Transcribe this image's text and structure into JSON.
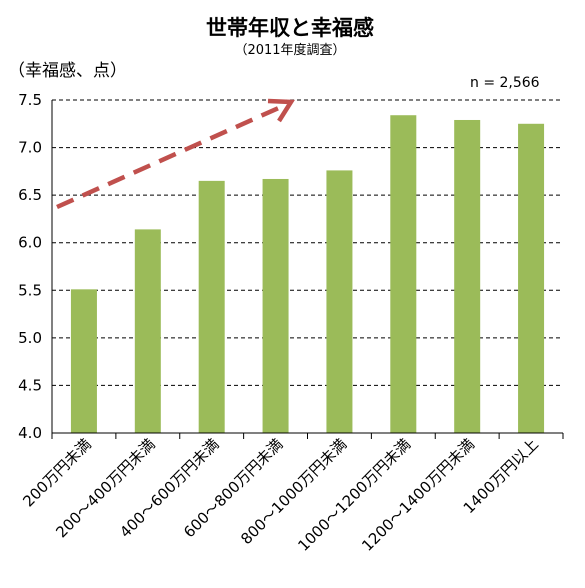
{
  "chart_data": {
    "type": "bar",
    "title": "世帯年収と幸福感",
    "subtitle": "（2011年度調査）",
    "ylabel": "（幸福感、点）",
    "note": "n = 2,566",
    "categories": [
      "200万円未満",
      "200～400万円未満",
      "400～600万円未満",
      "600～800万円未満",
      "800～1000万円未満",
      "1000～1200万円未満",
      "1200～1400万円未満",
      "1400万円以上"
    ],
    "values": [
      5.51,
      6.14,
      6.65,
      6.67,
      6.76,
      7.34,
      7.29,
      7.25
    ],
    "ylim": [
      4.0,
      7.5
    ],
    "yticks": [
      "4.0",
      "4.5",
      "5.0",
      "5.5",
      "6.0",
      "6.5",
      "7.0",
      "7.5"
    ],
    "grid": true,
    "colors": {
      "bar": "#9bbb59",
      "grid": "#000000",
      "arrow": "#c0504d"
    }
  }
}
